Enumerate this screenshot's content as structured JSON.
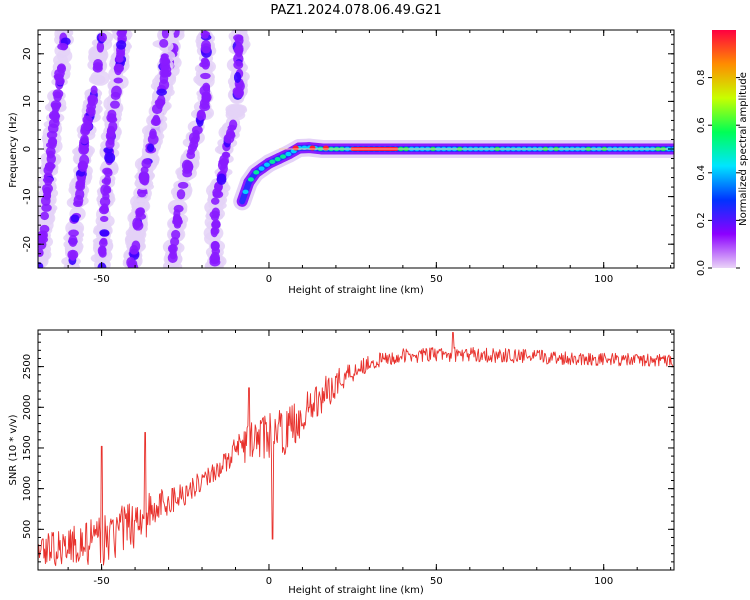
{
  "title": "PAZ1.2024.078.06.49.G21",
  "chart_data": [
    {
      "type": "heatmap",
      "xlabel": "Height of straight line (km)",
      "ylabel": "Frequency (Hz)",
      "xlim": [
        -69,
        121
      ],
      "ylim": [
        -25,
        25
      ],
      "x_ticks": [
        -50,
        0,
        50,
        100
      ],
      "y_ticks": [
        -20,
        -10,
        0,
        10,
        20
      ],
      "colorbar": {
        "label": "Normalized spectral amplitude",
        "range": [
          0,
          1
        ],
        "ticks": [
          "0.0",
          "0.2",
          "0.4",
          "0.6",
          "0.8"
        ],
        "colors": [
          "#ead4f7",
          "#8c00ff",
          "#0033ff",
          "#00e5ff",
          "#00ff55",
          "#c8ff00",
          "#ff8c00",
          "#ff0040"
        ]
      },
      "ridges": [
        {
          "x": [
            -61,
            -63,
            -65,
            -66,
            -67,
            -68,
            -69
          ],
          "y": [
            24,
            12,
            0,
            -8,
            -15,
            -20,
            -25
          ]
        },
        {
          "x": [
            -50,
            -52,
            -55,
            -56,
            -58,
            -59
          ],
          "y": [
            24,
            13,
            2,
            -6,
            -15,
            -25
          ]
        },
        {
          "x": [
            -44,
            -45,
            -47,
            -48,
            -49,
            -50
          ],
          "y": [
            22,
            15,
            5,
            -3,
            -12,
            -25
          ]
        },
        {
          "x": [
            -28,
            -31,
            -34,
            -37,
            -39,
            -41
          ],
          "y": [
            24,
            14,
            4,
            -6,
            -14,
            -24
          ]
        },
        {
          "x": [
            -31,
            -34,
            -37,
            -39,
            -41
          ],
          "y": [
            15,
            5,
            -5,
            -15,
            -25
          ]
        },
        {
          "x": [
            -19,
            -21,
            -23,
            -25,
            -27,
            -29
          ],
          "y": [
            10,
            5,
            0,
            -6,
            -13,
            -25
          ]
        },
        {
          "x": [
            -9,
            -10,
            -12,
            -14,
            -16
          ],
          "y": [
            12,
            7,
            2,
            -5,
            -11
          ]
        }
      ],
      "main_track": {
        "x": [
          -8,
          -6,
          -4,
          -2,
          0,
          3,
          6,
          9,
          12,
          16,
          20,
          30,
          50,
          80,
          121
        ],
        "y": [
          -11,
          -7,
          -5,
          -4,
          -3,
          -2,
          -1,
          0.2,
          0.3,
          0,
          0,
          0,
          0,
          0,
          0
        ],
        "peak_region_x": [
          25,
          38
        ]
      }
    },
    {
      "type": "line",
      "xlabel": "Height of straight line (km)",
      "ylabel": "SNR (10 * v/v)",
      "xlim": [
        -69,
        121
      ],
      "ylim": [
        0,
        2950
      ],
      "x_ticks": [
        -50,
        0,
        50,
        100
      ],
      "y_ticks": [
        500,
        1000,
        1500,
        2000,
        2500
      ],
      "color": "#e8312c",
      "trend": {
        "x": [
          -69,
          -60,
          -50,
          -45,
          -40,
          -35,
          -30,
          -25,
          -20,
          -15,
          -10,
          -5,
          0,
          5,
          10,
          15,
          20,
          25,
          30,
          40,
          50,
          60,
          80,
          100,
          121
        ],
        "y": [
          250,
          300,
          350,
          450,
          600,
          700,
          850,
          950,
          1100,
          1250,
          1450,
          1600,
          1650,
          1700,
          1900,
          2100,
          2300,
          2450,
          2550,
          2630,
          2650,
          2650,
          2620,
          2590,
          2570
        ],
        "noise": [
          200,
          250,
          300,
          320,
          320,
          280,
          200,
          150,
          120,
          120,
          180,
          250,
          280,
          280,
          250,
          220,
          180,
          150,
          100,
          90,
          90,
          90,
          90,
          80,
          80
        ]
      },
      "spikes": [
        {
          "x": -50,
          "y": 1520
        },
        {
          "x": -37,
          "y": 1690
        },
        {
          "x": -6,
          "y": 2240
        },
        {
          "x": 1,
          "y": 380
        },
        {
          "x": 55,
          "y": 2920
        },
        {
          "x": 12,
          "y": 2000
        }
      ]
    }
  ]
}
